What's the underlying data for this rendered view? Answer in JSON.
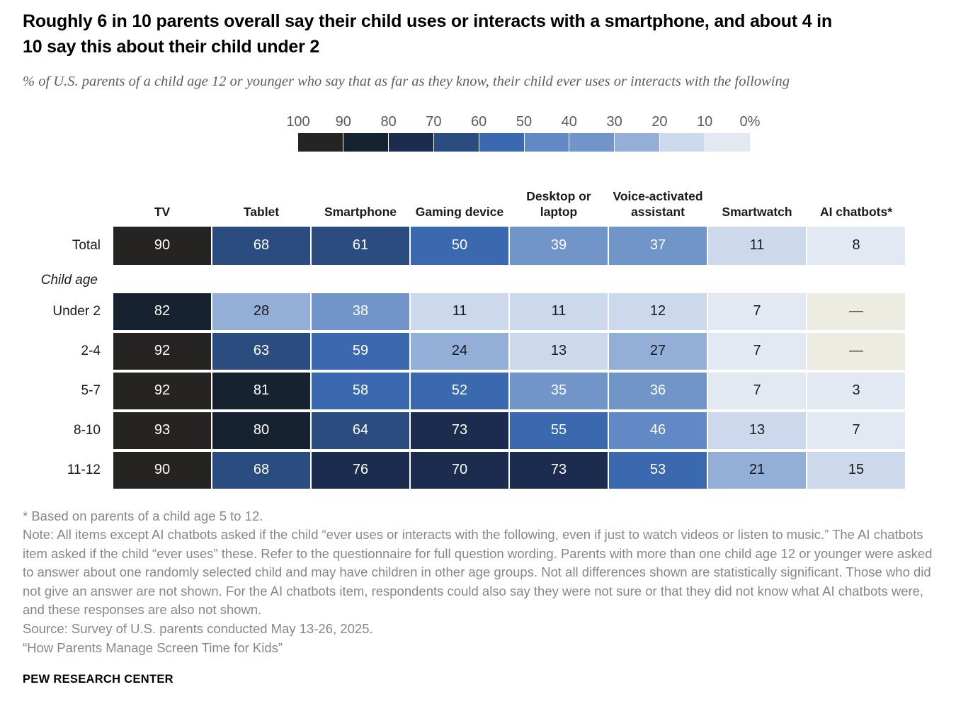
{
  "title": "Roughly 6 in 10 parents overall say their child uses or interacts with a smartphone, and about 4 in 10 say this about their child under 2",
  "subtitle": "% of U.S. parents of a child age 12 or younger who say that as far as they know, their child ever uses or interacts with the following",
  "chart_data": {
    "type": "heatmap",
    "legend": {
      "tick_labels": [
        "100",
        "90",
        "80",
        "70",
        "60",
        "50",
        "40",
        "30",
        "20",
        "10",
        "0%"
      ],
      "bucket_colors": [
        "#262323",
        "#16222f",
        "#1c2c4f",
        "#2b4c7e",
        "#3a69b0",
        "#6089c5",
        "#7195c9",
        "#93aed7",
        "#ccd9ec",
        "#e3e9f3"
      ],
      "value_range": [
        0,
        100
      ]
    },
    "columns": [
      "TV",
      "Tablet",
      "Smartphone",
      "Gaming device",
      "Desktop or laptop",
      "Voice-activated assistant",
      "Smartwatch",
      "AI chatbots*"
    ],
    "group_label": "Child age",
    "rows": [
      {
        "label": "Total",
        "group": "total",
        "values": [
          90,
          68,
          61,
          50,
          39,
          37,
          11,
          8
        ]
      },
      {
        "label": "Under 2",
        "group": "child-age",
        "values": [
          82,
          28,
          38,
          11,
          11,
          12,
          7,
          null
        ]
      },
      {
        "label": "2-4",
        "group": "child-age",
        "values": [
          92,
          63,
          59,
          24,
          13,
          27,
          7,
          null
        ]
      },
      {
        "label": "5-7",
        "group": "child-age",
        "values": [
          92,
          81,
          58,
          52,
          35,
          36,
          7,
          3
        ]
      },
      {
        "label": "8-10",
        "group": "child-age",
        "values": [
          93,
          80,
          64,
          73,
          55,
          46,
          13,
          7
        ]
      },
      {
        "label": "11-12",
        "group": "child-age",
        "values": [
          90,
          68,
          76,
          70,
          73,
          53,
          21,
          15
        ]
      }
    ],
    "no_data_symbol": "—",
    "no_data_bg": "#edece3",
    "text_color_dark_cells": "#ffffff",
    "text_color_light_cells": "#1a1a1a"
  },
  "footnotes": {
    "asterisk": "* Based on parents of a child age 5 to 12.",
    "note": "Note: All items except AI chatbots asked if the child “ever uses or interacts with the following, even if just to watch videos or listen to music.” The AI chatbots item asked if the child “ever uses” these. Refer to the questionnaire for full question wording. Parents with more than one child age 12 or younger were asked to answer about one randomly selected child and may have children in other age groups. Not all differences shown are statistically significant. Those who did not give an answer are not shown. For the AI chatbots item, respondents could also say they were not sure or that they did not know what AI chatbots were, and these responses are also not shown.",
    "source": "Source: Survey of U.S. parents conducted May 13-26, 2025.",
    "report": "“How Parents Manage Screen Time for Kids”"
  },
  "footer": {
    "brand": "PEW RESEARCH CENTER"
  }
}
